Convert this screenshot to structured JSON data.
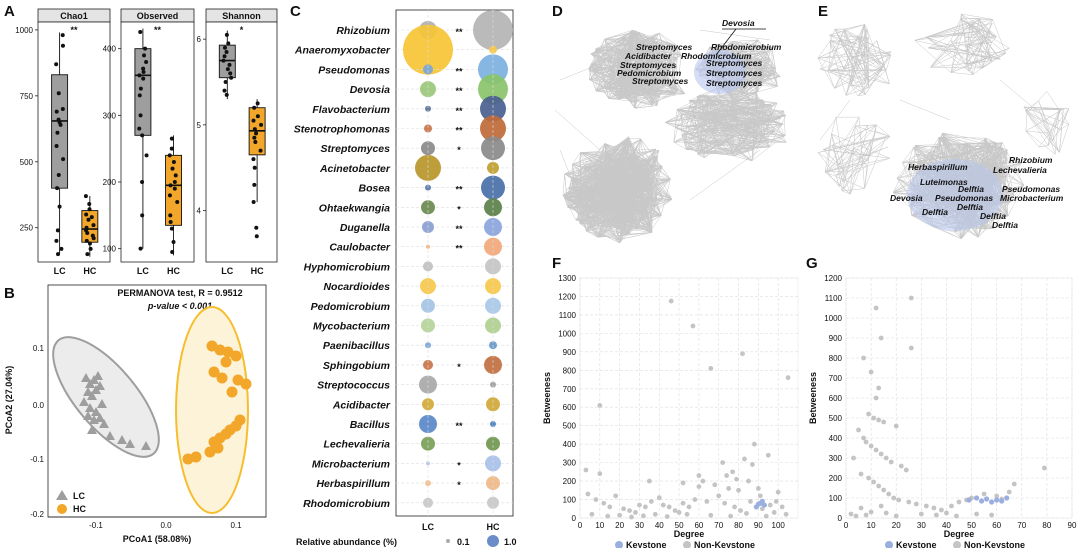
{
  "panels": {
    "A": {
      "label": "A"
    },
    "B": {
      "label": "B"
    },
    "C": {
      "label": "C"
    },
    "D": {
      "label": "D"
    },
    "E": {
      "label": "E"
    },
    "F": {
      "label": "F"
    },
    "G": {
      "label": "G"
    }
  },
  "colors": {
    "LC": "#9e9e9e",
    "HC": "#f2a62a",
    "keystone": "#9aaee0",
    "nonkeystone": "#c4c4c4",
    "network": "#c8c8c8",
    "hc_ellipse": "#f6be2f"
  },
  "boxplots": [
    {
      "title": "Chao1",
      "sig": "**",
      "groups": [
        "LC",
        "HC"
      ],
      "yticks": [
        250,
        500,
        750,
        1000
      ],
      "ylim": [
        120,
        1030
      ],
      "box": [
        {
          "q1": 400,
          "med": 655,
          "q3": 830,
          "min": 150,
          "max": 990
        },
        {
          "q1": 195,
          "med": 245,
          "q3": 315,
          "min": 140,
          "max": 370
        }
      ],
      "pts": [
        [
          980,
          940,
          870,
          760,
          700,
          690,
          660,
          650,
          640,
          610,
          560,
          510,
          450,
          400,
          330,
          240,
          200,
          170,
          150
        ],
        [
          370,
          340,
          320,
          300,
          290,
          280,
          260,
          250,
          240,
          230,
          220,
          210,
          200,
          190,
          170,
          150
        ]
      ]
    },
    {
      "title": "Observed",
      "sig": "**",
      "groups": [
        "LC",
        "HC"
      ],
      "yticks": [
        100,
        200,
        300,
        400
      ],
      "ylim": [
        80,
        440
      ],
      "box": [
        {
          "q1": 270,
          "med": 360,
          "q3": 400,
          "min": 100,
          "max": 430
        },
        {
          "q1": 135,
          "med": 195,
          "q3": 240,
          "min": 90,
          "max": 270
        }
      ],
      "pts": [
        [
          425,
          400,
          390,
          380,
          370,
          365,
          360,
          355,
          340,
          330,
          300,
          280,
          270,
          240,
          200,
          150,
          100
        ],
        [
          265,
          250,
          240,
          230,
          220,
          210,
          200,
          195,
          190,
          180,
          170,
          150,
          140,
          130,
          110,
          95
        ]
      ]
    },
    {
      "title": "Shannon",
      "sig": "*",
      "groups": [
        "LC",
        "HC"
      ],
      "yticks": [
        4,
        5,
        6
      ],
      "ylim": [
        3.4,
        6.2
      ],
      "box": [
        {
          "q1": 5.55,
          "med": 5.75,
          "q3": 5.93,
          "min": 5.3,
          "max": 6.1
        },
        {
          "q1": 4.65,
          "med": 4.93,
          "q3": 5.2,
          "min": 4.1,
          "max": 5.3
        }
      ],
      "pts": [
        [
          6.05,
          5.95,
          5.9,
          5.85,
          5.8,
          5.75,
          5.7,
          5.65,
          5.6,
          5.55,
          5.5,
          5.4,
          5.35
        ],
        [
          5.25,
          5.2,
          5.1,
          5.05,
          5.0,
          4.95,
          4.9,
          4.85,
          4.8,
          4.7,
          4.6,
          4.5,
          4.3,
          4.1,
          3.8,
          3.7
        ]
      ]
    }
  ],
  "pcoa": {
    "title_line1": "PERMANOVA test, R = 0.9512",
    "title_line2": "p-value < 0.001",
    "xlabel": "PCoA1 (58.08%)",
    "ylabel": "PCoA2 (27.04%)",
    "xticks": [
      "-0.1",
      "0.0",
      "0.1"
    ],
    "yticks": [
      "0.1",
      "0.0",
      "-0.1",
      "-0.2"
    ],
    "legend": [
      "LC",
      "HC"
    ]
  },
  "bubble": {
    "genera": [
      "Rhizobium",
      "Anaeromyxobacter",
      "Pseudomonas",
      "Devosia",
      "Flavobacterium",
      "Stenotrophomonas",
      "Streptomyces",
      "Acinetobacter",
      "Bosea",
      "Ohtaekwangia",
      "Duganella",
      "Caulobacter",
      "Hyphomicrobium",
      "Nocardioides",
      "Pedomicrobium",
      "Mycobacterium",
      "Paenibacillus",
      "Sphingobium",
      "Streptococcus",
      "Acidibacter",
      "Bacillus",
      "Lechevalieria",
      "Microbacterium",
      "Herbaspirillum",
      "Rhodomicrobium"
    ],
    "sig": [
      "**",
      "",
      "**",
      "**",
      "**",
      "**",
      "*",
      "",
      "**",
      "*",
      "**",
      "**",
      "",
      "",
      "",
      "",
      "",
      "*",
      "",
      "",
      "**",
      "",
      "*",
      "*",
      ""
    ],
    "lc_size": [
      9,
      25,
      5,
      8,
      3,
      4,
      7,
      13,
      3,
      7,
      6,
      2,
      5,
      8,
      7,
      7,
      3,
      5,
      9,
      6,
      9,
      7,
      2,
      3,
      5
    ],
    "hc_size": [
      20,
      4,
      15,
      15,
      13,
      13,
      12,
      6,
      12,
      9,
      9,
      9,
      8,
      8,
      8,
      8,
      4,
      9,
      3,
      7,
      3,
      7,
      8,
      7,
      6
    ],
    "lc_color": [
      "#b0b0b0",
      "#f6c435",
      "#7aa6d6",
      "#9ac77a",
      "#5d7399",
      "#c9744a",
      "#8a8a8a",
      "#b8962a",
      "#5a78aa",
      "#6a8a50",
      "#8aa0d4",
      "#f0b080",
      "#c0c0c0",
      "#f6c84a",
      "#a4c4e4",
      "#b4d49a",
      "#7aa6d6",
      "#c9744a",
      "#a8a8a8",
      "#d2aa3a",
      "#5a88c8",
      "#7aa058",
      "#b8c8e8",
      "#f0c090",
      "#c8c8c8"
    ],
    "hc_color": [
      "#b4b4b4",
      "#f6c84a",
      "#7cb0e0",
      "#8ac46a",
      "#4a6090",
      "#c06a3a",
      "#8a8a8a",
      "#c0a030",
      "#4a70a8",
      "#5a8048",
      "#8aa4dc",
      "#f0a878",
      "#c4c4c4",
      "#f6c84a",
      "#a8c8e8",
      "#b0d090",
      "#6a98c8",
      "#c07040",
      "#a0a0a0",
      "#d0a838",
      "#4a80c0",
      "#709850",
      "#a8c0e8",
      "#f0b888",
      "#c8c8c8"
    ],
    "xlabels": [
      "LC",
      "HC"
    ],
    "legend_title": "Relative abundance (%)",
    "legend_values": [
      "0.1",
      "1.0"
    ]
  },
  "network_D": {
    "labels": [
      "Devosia",
      "Streptomyces",
      "Rhodomicrobium",
      "Acidibacter",
      "Rhodomicrobium",
      "Streptomyces",
      "Pedomicrobium",
      "Streptomyces",
      "Streptomyces",
      "Streptomyces",
      "Streptomyces"
    ]
  },
  "network_E": {
    "labels": [
      "Herbaspirillum",
      "Rhizobium",
      "Lechevalieria",
      "Luteimonas",
      "Delftia",
      "Pseudomonas",
      "Devosia",
      "Pseudomonas",
      "Microbacterium",
      "Delftia",
      "Delftia",
      "Delftia",
      "Delftia"
    ]
  },
  "scatter_F": {
    "xlabel": "Degree",
    "ylabel": "Betweeness",
    "xticks": [
      0,
      10,
      20,
      30,
      40,
      50,
      60,
      70,
      80,
      90,
      100
    ],
    "yticks": [
      0,
      100,
      200,
      300,
      400,
      500,
      600,
      700,
      800,
      900,
      1000,
      1100,
      1200,
      1300
    ],
    "legend": [
      "Keystone",
      "Non-Keystone"
    ],
    "nonkey": [
      [
        46,
        1175
      ],
      [
        57,
        1040
      ],
      [
        10,
        610
      ],
      [
        82,
        890
      ],
      [
        66,
        810
      ],
      [
        105,
        760
      ],
      [
        88,
        400
      ],
      [
        95,
        340
      ],
      [
        72,
        300
      ],
      [
        83,
        320
      ],
      [
        77,
        250
      ],
      [
        60,
        230
      ],
      [
        62,
        200
      ],
      [
        68,
        180
      ],
      [
        75,
        160
      ],
      [
        80,
        150
      ],
      [
        85,
        200
      ],
      [
        90,
        160
      ],
      [
        100,
        140
      ],
      [
        4,
        130
      ],
      [
        8,
        100
      ],
      [
        12,
        80
      ],
      [
        15,
        60
      ],
      [
        18,
        120
      ],
      [
        22,
        50
      ],
      [
        25,
        40
      ],
      [
        28,
        30
      ],
      [
        30,
        70
      ],
      [
        33,
        60
      ],
      [
        36,
        90
      ],
      [
        40,
        110
      ],
      [
        42,
        70
      ],
      [
        45,
        60
      ],
      [
        48,
        40
      ],
      [
        50,
        30
      ],
      [
        52,
        80
      ],
      [
        55,
        60
      ],
      [
        58,
        100
      ],
      [
        64,
        90
      ],
      [
        70,
        120
      ],
      [
        73,
        80
      ],
      [
        78,
        60
      ],
      [
        81,
        40
      ],
      [
        86,
        90
      ],
      [
        92,
        50
      ],
      [
        96,
        70
      ],
      [
        98,
        30
      ],
      [
        102,
        60
      ],
      [
        6,
        20
      ],
      [
        14,
        10
      ],
      [
        20,
        15
      ],
      [
        26,
        5
      ],
      [
        32,
        12
      ],
      [
        38,
        20
      ],
      [
        44,
        8
      ],
      [
        54,
        20
      ],
      [
        66,
        15
      ],
      [
        76,
        10
      ],
      [
        84,
        25
      ],
      [
        94,
        10
      ],
      [
        104,
        20
      ],
      [
        3,
        260
      ],
      [
        10,
        240
      ],
      [
        35,
        200
      ],
      [
        52,
        190
      ],
      [
        60,
        170
      ],
      [
        74,
        230
      ],
      [
        79,
        210
      ],
      [
        87,
        290
      ],
      [
        91,
        120
      ],
      [
        99,
        90
      ]
    ],
    "key": [
      [
        89,
        60
      ],
      [
        90,
        75
      ],
      [
        91,
        80
      ],
      [
        92,
        90
      ],
      [
        93,
        70
      ]
    ]
  },
  "scatter_G": {
    "xlabel": "Degree",
    "ylabel": "Betweeness",
    "xticks": [
      0,
      10,
      20,
      30,
      40,
      50,
      60,
      70,
      80,
      90
    ],
    "yticks": [
      0,
      100,
      200,
      300,
      400,
      500,
      600,
      700,
      800,
      900,
      1000,
      1100,
      1200
    ],
    "legend": [
      "Keystone",
      "Non-Keystone"
    ],
    "nonkey": [
      [
        12,
        1050
      ],
      [
        26,
        1100
      ],
      [
        14,
        900
      ],
      [
        7,
        800
      ],
      [
        26,
        850
      ],
      [
        10,
        730
      ],
      [
        13,
        650
      ],
      [
        12,
        600
      ],
      [
        9,
        520
      ],
      [
        11,
        500
      ],
      [
        13,
        490
      ],
      [
        15,
        480
      ],
      [
        20,
        460
      ],
      [
        5,
        440
      ],
      [
        7,
        400
      ],
      [
        8,
        380
      ],
      [
        10,
        360
      ],
      [
        12,
        340
      ],
      [
        14,
        320
      ],
      [
        16,
        300
      ],
      [
        18,
        280
      ],
      [
        22,
        260
      ],
      [
        24,
        240
      ],
      [
        6,
        220
      ],
      [
        9,
        200
      ],
      [
        11,
        180
      ],
      [
        13,
        160
      ],
      [
        15,
        140
      ],
      [
        17,
        120
      ],
      [
        19,
        100
      ],
      [
        21,
        90
      ],
      [
        25,
        80
      ],
      [
        28,
        70
      ],
      [
        32,
        60
      ],
      [
        35,
        50
      ],
      [
        38,
        40
      ],
      [
        42,
        60
      ],
      [
        45,
        80
      ],
      [
        48,
        90
      ],
      [
        50,
        100
      ],
      [
        55,
        120
      ],
      [
        60,
        110
      ],
      [
        62,
        95
      ],
      [
        65,
        130
      ],
      [
        67,
        170
      ],
      [
        79,
        250
      ],
      [
        2,
        20
      ],
      [
        4,
        10
      ],
      [
        8,
        15
      ],
      [
        16,
        25
      ],
      [
        20,
        10
      ],
      [
        30,
        20
      ],
      [
        36,
        15
      ],
      [
        40,
        25
      ],
      [
        44,
        10
      ],
      [
        52,
        20
      ],
      [
        58,
        15
      ],
      [
        3,
        300
      ],
      [
        6,
        50
      ],
      [
        10,
        30
      ],
      [
        14,
        60
      ]
    ],
    "key": [
      [
        49,
        90
      ],
      [
        52,
        100
      ],
      [
        54,
        85
      ],
      [
        56,
        95
      ],
      [
        58,
        80
      ],
      [
        60,
        90
      ],
      [
        62,
        85
      ],
      [
        64,
        100
      ]
    ]
  }
}
